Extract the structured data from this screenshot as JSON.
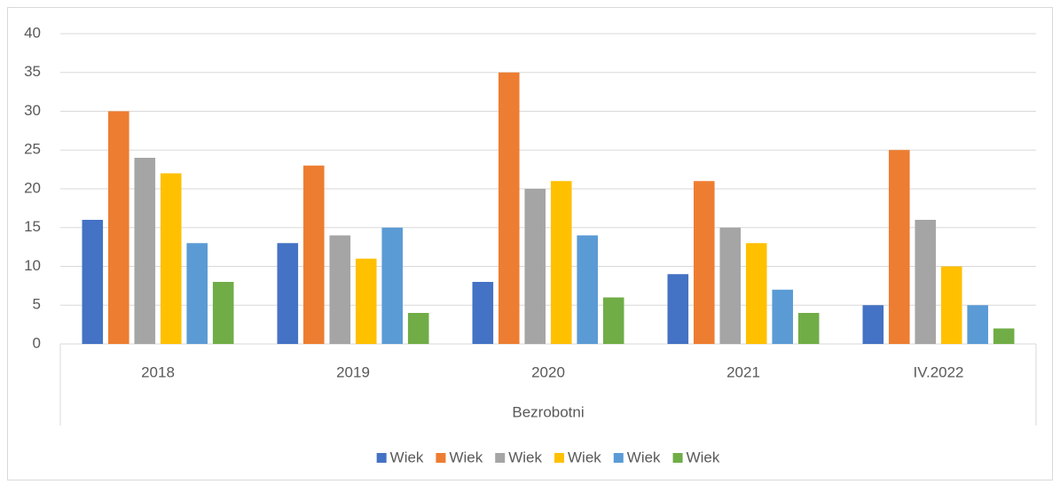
{
  "chart_data": {
    "type": "bar",
    "categories": [
      "2018",
      "2019",
      "2020",
      "2021",
      "IV.2022"
    ],
    "category_group": "Bezrobotni",
    "series": [
      {
        "name": "Wiek",
        "color": "#4472c4",
        "values": [
          16,
          13,
          8,
          9,
          5
        ]
      },
      {
        "name": "Wiek",
        "color": "#ed7d31",
        "values": [
          30,
          23,
          35,
          21,
          25
        ]
      },
      {
        "name": "Wiek",
        "color": "#a5a5a5",
        "values": [
          24,
          14,
          20,
          15,
          16
        ]
      },
      {
        "name": "Wiek",
        "color": "#ffc000",
        "values": [
          22,
          11,
          21,
          13,
          10
        ]
      },
      {
        "name": "Wiek",
        "color": "#5b9bd5",
        "values": [
          13,
          15,
          14,
          7,
          5
        ]
      },
      {
        "name": "Wiek",
        "color": "#70ad47",
        "values": [
          8,
          4,
          6,
          4,
          2
        ]
      }
    ],
    "ylim": [
      0,
      40
    ],
    "yticks": [
      0,
      5,
      10,
      15,
      20,
      25,
      30,
      35,
      40
    ],
    "grid": true,
    "legend": "bottom"
  }
}
